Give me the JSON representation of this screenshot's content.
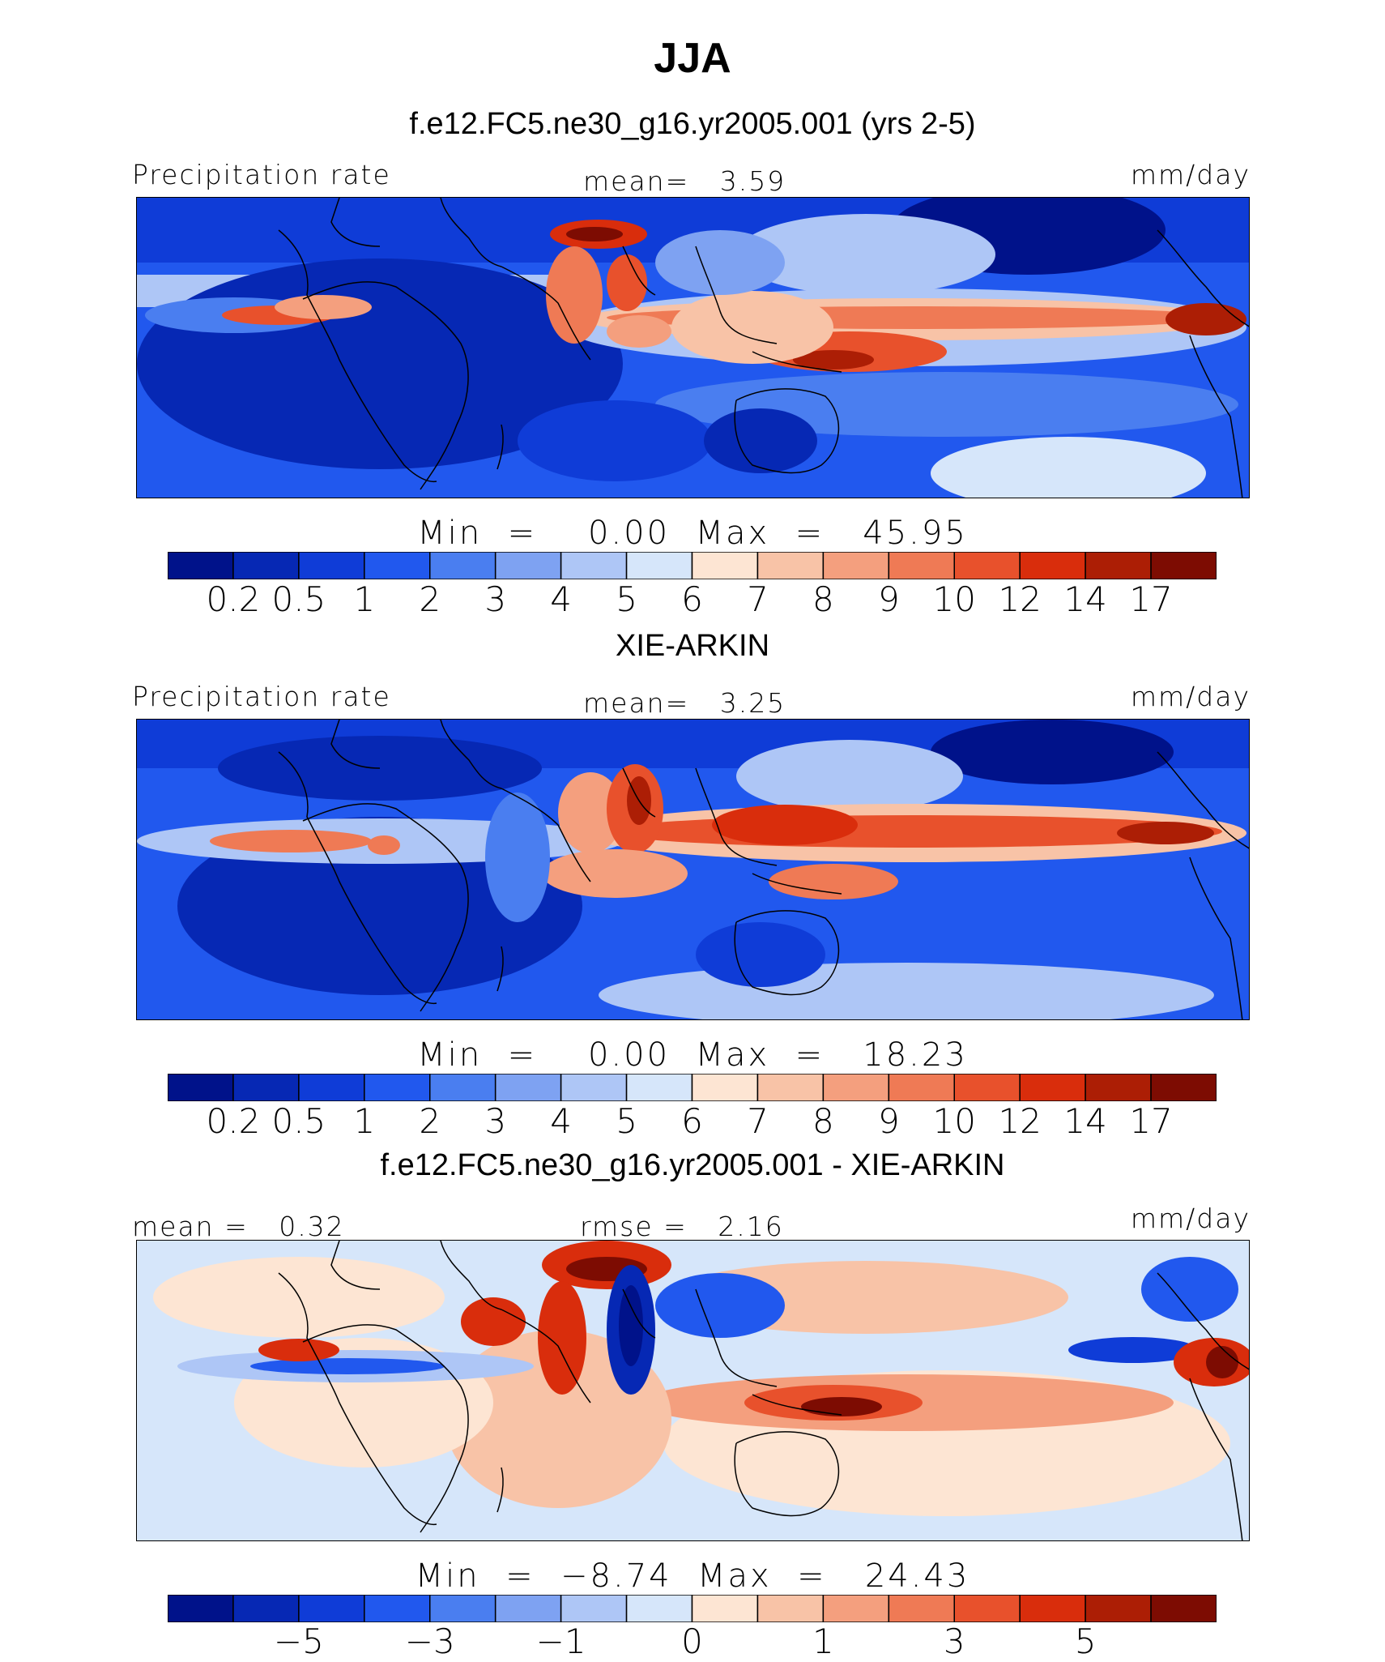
{
  "chart_data": [
    {
      "type": "heatmap",
      "title": "JJA",
      "subtitle": "f.e12.FC5.ne30_g16.yr2005.001 (yrs 2-5)",
      "left_label": "Precipitation rate",
      "center_label": "mean=   3.59",
      "right_label": "mm/day",
      "stat_text": "Min  =    0.00  Max  =   45.95",
      "min": 0.0,
      "max": 45.95,
      "mean": 3.59,
      "colorbar_ticks": [
        "0.2",
        "0.5",
        "1",
        "2",
        "3",
        "4",
        "5",
        "6",
        "7",
        "8",
        "9",
        "10",
        "12",
        "14",
        "17"
      ]
    },
    {
      "type": "heatmap",
      "subtitle": "XIE-ARKIN",
      "left_label": "Precipitation rate",
      "center_label": "mean=   3.25",
      "right_label": "mm/day",
      "stat_text": "Min  =    0.00  Max  =   18.23",
      "min": 0.0,
      "max": 18.23,
      "mean": 3.25,
      "colorbar_ticks": [
        "0.2",
        "0.5",
        "1",
        "2",
        "3",
        "4",
        "5",
        "6",
        "7",
        "8",
        "9",
        "10",
        "12",
        "14",
        "17"
      ]
    },
    {
      "type": "heatmap",
      "subtitle": "f.e12.FC5.ne30_g16.yr2005.001 - XIE-ARKIN",
      "left_label": "mean =   0.32",
      "center_label": "rmse =   2.16",
      "right_label": "mm/day",
      "stat_text": "Min  =  −8.74  Max  =   24.43",
      "min": -8.74,
      "max": 24.43,
      "mean": 0.32,
      "rmse": 2.16,
      "colorbar_ticks": [
        "−5",
        "−3",
        "−1",
        "0",
        "1",
        "3",
        "5"
      ]
    }
  ],
  "colors": {
    "scale": [
      "#00128a",
      "#0628b4",
      "#0f3cd7",
      "#2158ee",
      "#4a7ef0",
      "#7ea2f2",
      "#aec6f6",
      "#d6e6fa",
      "#fde5d3",
      "#f8c3a7",
      "#f49f7e",
      "#ef7a55",
      "#e8512c",
      "#d92d0c",
      "#ac1e05",
      "#7d0c02"
    ]
  }
}
